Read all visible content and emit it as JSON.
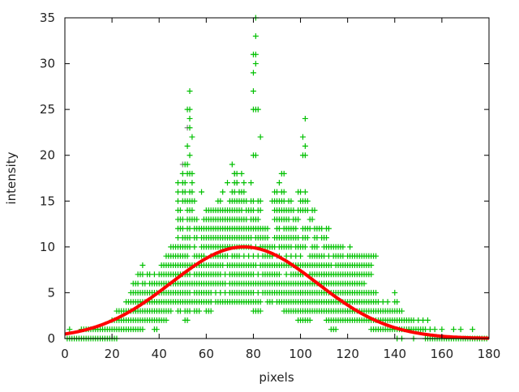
{
  "chart_data": {
    "type": "scatter",
    "title": "",
    "xlabel": "pixels",
    "ylabel": "intensity",
    "xlim": [
      0,
      180
    ],
    "ylim": [
      0,
      35
    ],
    "xticks": [
      "0",
      "20",
      "40",
      "60",
      "80",
      "100",
      "120",
      "140",
      "160",
      "180"
    ],
    "yticks": [
      "0",
      "5",
      "10",
      "15",
      "20",
      "25",
      "30",
      "35"
    ],
    "grid": false,
    "colors": {
      "points": "#00c000",
      "points_secondary": "#808080",
      "fit": "#ff0000"
    },
    "points_by_intensity": {
      "0": [
        1,
        2,
        3,
        4,
        5,
        6,
        7,
        8,
        9,
        10,
        11,
        12,
        13,
        14,
        15,
        16,
        17,
        18,
        19,
        20,
        21,
        22,
        141,
        143,
        148,
        153,
        154,
        155,
        156,
        157,
        158,
        159,
        160,
        161,
        162,
        163,
        164,
        165,
        166,
        167,
        168,
        169,
        170,
        171,
        172,
        173,
        174,
        175,
        176,
        177,
        178,
        179
      ],
      "1": [
        2,
        7,
        8,
        9,
        10,
        11,
        12,
        13,
        14,
        15,
        16,
        17,
        18,
        19,
        20,
        21,
        22,
        23,
        24,
        25,
        26,
        27,
        28,
        29,
        30,
        31,
        32,
        33,
        38,
        39,
        113,
        114,
        115,
        130,
        131,
        132,
        133,
        134,
        135,
        136,
        137,
        138,
        139,
        140,
        141,
        142,
        143,
        144,
        145,
        146,
        147,
        148,
        149,
        150,
        151,
        152,
        153,
        155,
        157,
        160,
        165,
        168,
        173
      ],
      "2": [
        20,
        21,
        22,
        23,
        24,
        25,
        26,
        27,
        28,
        29,
        30,
        31,
        32,
        33,
        34,
        35,
        36,
        37,
        38,
        39,
        40,
        41,
        42,
        43,
        51,
        52,
        99,
        100,
        101,
        102,
        103,
        104,
        111,
        112,
        113,
        114,
        115,
        116,
        117,
        118,
        119,
        120,
        121,
        122,
        123,
        124,
        125,
        126,
        127,
        128,
        129,
        130,
        131,
        132,
        133,
        134,
        135,
        136,
        137,
        138,
        139,
        140,
        141,
        142,
        143,
        144,
        145,
        146,
        147,
        148,
        150,
        152,
        154
      ],
      "3": [
        22,
        23,
        24,
        25,
        26,
        27,
        28,
        29,
        30,
        31,
        32,
        33,
        34,
        35,
        36,
        37,
        38,
        39,
        40,
        41,
        42,
        43,
        44,
        45,
        48,
        49,
        51,
        52,
        53,
        55,
        56,
        57,
        60,
        61,
        62,
        80,
        81,
        82,
        83,
        93,
        94,
        95,
        96,
        97,
        98,
        99,
        100,
        101,
        102,
        103,
        104,
        105,
        106,
        107,
        108,
        109,
        110,
        111,
        112,
        113,
        114,
        115,
        116,
        117,
        118,
        119,
        120,
        121,
        122,
        123,
        124,
        125,
        126,
        127,
        128,
        129,
        130,
        131,
        132,
        133,
        134,
        135,
        136,
        137,
        138,
        139,
        140,
        141,
        142,
        143
      ],
      "4": [
        26,
        27,
        28,
        29,
        30,
        31,
        32,
        33,
        34,
        35,
        36,
        37,
        38,
        39,
        40,
        41,
        42,
        43,
        44,
        45,
        46,
        47,
        48,
        49,
        50,
        51,
        52,
        53,
        54,
        55,
        56,
        57,
        58,
        59,
        60,
        61,
        62,
        64,
        65,
        66,
        67,
        68,
        69,
        70,
        71,
        72,
        73,
        74,
        75,
        76,
        77,
        78,
        79,
        80,
        81,
        82,
        83,
        86,
        87,
        88,
        90,
        91,
        92,
        93,
        94,
        95,
        96,
        97,
        98,
        99,
        100,
        101,
        102,
        103,
        104,
        105,
        106,
        107,
        108,
        109,
        110,
        111,
        112,
        113,
        114,
        115,
        116,
        117,
        118,
        119,
        120,
        121,
        122,
        123,
        124,
        125,
        126,
        127,
        128,
        129,
        130,
        131,
        132,
        133,
        135,
        137,
        140,
        141
      ],
      "5": [
        28,
        29,
        30,
        31,
        32,
        33,
        34,
        35,
        36,
        37,
        38,
        39,
        40,
        41,
        42,
        43,
        44,
        45,
        46,
        47,
        48,
        49,
        50,
        51,
        52,
        53,
        55,
        56,
        57,
        58,
        59,
        60,
        61,
        62,
        64,
        66,
        68,
        70,
        71,
        72,
        73,
        74,
        75,
        76,
        77,
        78,
        79,
        80,
        82,
        84,
        85,
        86,
        87,
        88,
        89,
        90,
        91,
        92,
        93,
        94,
        95,
        96,
        97,
        98,
        99,
        100,
        101,
        102,
        103,
        104,
        105,
        106,
        107,
        108,
        109,
        110,
        111,
        112,
        113,
        114,
        115,
        116,
        117,
        118,
        119,
        120,
        121,
        122,
        123,
        124,
        125,
        126,
        127,
        128,
        129,
        130,
        131,
        132,
        140
      ],
      "6": [
        29,
        30,
        31,
        33,
        34,
        36,
        37,
        38,
        39,
        40,
        41,
        42,
        43,
        44,
        45,
        46,
        47,
        48,
        49,
        50,
        51,
        52,
        53,
        54,
        55,
        56,
        57,
        58,
        59,
        60,
        61,
        62,
        63,
        64,
        65,
        66,
        67,
        68,
        70,
        71,
        72,
        73,
        74,
        75,
        76,
        77,
        78,
        79,
        80,
        81,
        82,
        83,
        84,
        85,
        86,
        87,
        88,
        89,
        90,
        91,
        92,
        93,
        94,
        95,
        96,
        97,
        98,
        99,
        100,
        101,
        102,
        103,
        104,
        105,
        106,
        107,
        108,
        109,
        110,
        111,
        112,
        113,
        114,
        115,
        116,
        117,
        118,
        119,
        120,
        121,
        122,
        123,
        124,
        125,
        126,
        127
      ],
      "7": [
        31,
        32,
        33,
        35,
        36,
        38,
        40,
        41,
        42,
        43,
        44,
        45,
        46,
        47,
        48,
        49,
        50,
        51,
        52,
        53,
        55,
        56,
        57,
        58,
        59,
        60,
        61,
        62,
        63,
        64,
        65,
        66,
        68,
        70,
        71,
        72,
        73,
        74,
        75,
        76,
        77,
        78,
        79,
        80,
        82,
        84,
        85,
        86,
        87,
        88,
        89,
        90,
        91,
        94,
        96,
        97,
        98,
        99,
        100,
        101,
        104,
        105,
        106,
        107,
        108,
        109,
        110,
        111,
        112,
        113,
        114,
        115,
        116,
        117,
        118,
        119,
        120,
        121,
        122,
        123,
        124,
        125,
        126,
        127,
        128,
        129,
        130
      ],
      "8": [
        33,
        41,
        42,
        43,
        44,
        45,
        46,
        47,
        48,
        49,
        50,
        51,
        52,
        53,
        54,
        55,
        56,
        57,
        58,
        59,
        60,
        61,
        62,
        63,
        64,
        65,
        66,
        67,
        69,
        70,
        71,
        72,
        73,
        74,
        75,
        76,
        77,
        78,
        79,
        80,
        81,
        83,
        84,
        85,
        86,
        87,
        88,
        89,
        90,
        91,
        92,
        93,
        94,
        95,
        96,
        97,
        98,
        99,
        100,
        101,
        102,
        103,
        104,
        105,
        106,
        107,
        108,
        109,
        110,
        111,
        112,
        113,
        115,
        116,
        117,
        118,
        119,
        120,
        121,
        122,
        123,
        124,
        125,
        126,
        127,
        128,
        129,
        130
      ],
      "9": [
        43,
        44,
        45,
        46,
        47,
        48,
        49,
        50,
        51,
        52,
        55,
        56,
        57,
        58,
        59,
        62,
        63,
        64,
        65,
        66,
        67,
        68,
        69,
        71,
        72,
        73,
        74,
        76,
        78,
        80,
        82,
        84,
        85,
        86,
        87,
        88,
        91,
        94,
        96,
        98,
        100,
        104,
        105,
        106,
        107,
        108,
        109,
        110,
        112,
        114,
        115,
        116,
        117,
        118,
        120,
        121,
        122,
        123,
        124,
        125,
        126,
        127,
        128,
        129,
        130,
        131,
        132
      ],
      "10": [
        45,
        46,
        47,
        48,
        49,
        50,
        51,
        52,
        53,
        55,
        58,
        59,
        60,
        61,
        62,
        63,
        64,
        65,
        66,
        67,
        68,
        69,
        70,
        71,
        72,
        73,
        74,
        75,
        76,
        77,
        78,
        79,
        81,
        83,
        84,
        85,
        86,
        87,
        88,
        89,
        91,
        92,
        93,
        94,
        95,
        96,
        98,
        99,
        100,
        101,
        102,
        105,
        106,
        107,
        110,
        111,
        112,
        113,
        114,
        115,
        116,
        117,
        118,
        121
      ],
      "11": [
        48,
        50,
        51,
        52,
        53,
        55,
        56,
        58,
        59,
        60,
        61,
        62,
        63,
        64,
        65,
        66,
        67,
        68,
        69,
        70,
        71,
        72,
        73,
        74,
        75,
        76,
        77,
        78,
        79,
        81,
        82,
        83,
        84,
        85,
        86,
        89,
        90,
        91,
        92,
        93,
        94,
        95,
        96,
        97,
        98,
        99,
        101,
        102,
        103,
        106,
        107,
        109,
        110,
        111
      ],
      "12": [
        48,
        49,
        50,
        52,
        53,
        55,
        56,
        57,
        58,
        59,
        60,
        61,
        62,
        63,
        64,
        65,
        66,
        67,
        68,
        69,
        70,
        71,
        72,
        73,
        74,
        75,
        76,
        77,
        78,
        79,
        80,
        81,
        82,
        83,
        84,
        85,
        86,
        90,
        91,
        93,
        94,
        95,
        96,
        97,
        98,
        101,
        102,
        103,
        104,
        106,
        107,
        108,
        109,
        111,
        112
      ],
      "13": [
        48,
        49,
        50,
        52,
        53,
        54,
        55,
        56,
        59,
        60,
        61,
        62,
        63,
        64,
        65,
        66,
        67,
        68,
        69,
        70,
        71,
        72,
        73,
        74,
        75,
        76,
        77,
        79,
        80,
        81,
        82,
        89,
        90,
        91,
        92,
        93,
        94,
        95,
        97,
        98,
        99,
        104,
        105
      ],
      "14": [
        48,
        49,
        52,
        53,
        54,
        60,
        61,
        62,
        63,
        64,
        65,
        66,
        67,
        68,
        69,
        70,
        71,
        72,
        73,
        74,
        75,
        77,
        78,
        79,
        80,
        82,
        83,
        89,
        90,
        91,
        92,
        93,
        94,
        95,
        96,
        97,
        99,
        100,
        101,
        102,
        103,
        105,
        106
      ],
      "15": [
        48,
        50,
        51,
        52,
        53,
        54,
        55,
        65,
        66,
        70,
        71,
        72,
        73,
        74,
        75,
        76,
        77,
        79,
        80,
        82,
        83,
        88,
        89,
        90,
        91,
        92,
        93,
        95,
        96,
        100,
        101,
        102,
        103
      ],
      "16": [
        48,
        50,
        51,
        53,
        54,
        58,
        67,
        71,
        72,
        74,
        75,
        76,
        89,
        90,
        92,
        93,
        99,
        100,
        102
      ],
      "17": [
        48,
        50,
        51,
        54,
        69,
        72,
        73,
        76,
        79,
        91
      ],
      "18": [
        50,
        52,
        53,
        54,
        72,
        73,
        75,
        92,
        93
      ],
      "19": [
        51,
        52,
        71
      ],
      "20": [
        53,
        80,
        81,
        101,
        102
      ],
      "21": [
        52,
        102
      ],
      "22": [
        54,
        83,
        101
      ],
      "23": [
        53
      ],
      "24": [
        53,
        102
      ],
      "25": [
        52,
        53,
        80,
        81,
        82
      ],
      "27": [
        53,
        80
      ],
      "29": [
        80
      ],
      "30": [
        81
      ],
      "31": [
        80,
        81
      ],
      "33": [
        81
      ],
      "35": [
        81
      ]
    },
    "secondary_points": [
      [
        30,
        3
      ],
      [
        50,
        19
      ],
      [
        52,
        23
      ],
      [
        62,
        4
      ],
      [
        70,
        10
      ],
      [
        72,
        18
      ],
      [
        73,
        17
      ],
      [
        90,
        9
      ],
      [
        100,
        5
      ],
      [
        110,
        7
      ],
      [
        120,
        3
      ],
      [
        146,
        1
      ],
      [
        170,
        0
      ]
    ],
    "fit": {
      "type": "gaussian",
      "amplitude": 10,
      "center": 76,
      "sigma": 31
    }
  }
}
